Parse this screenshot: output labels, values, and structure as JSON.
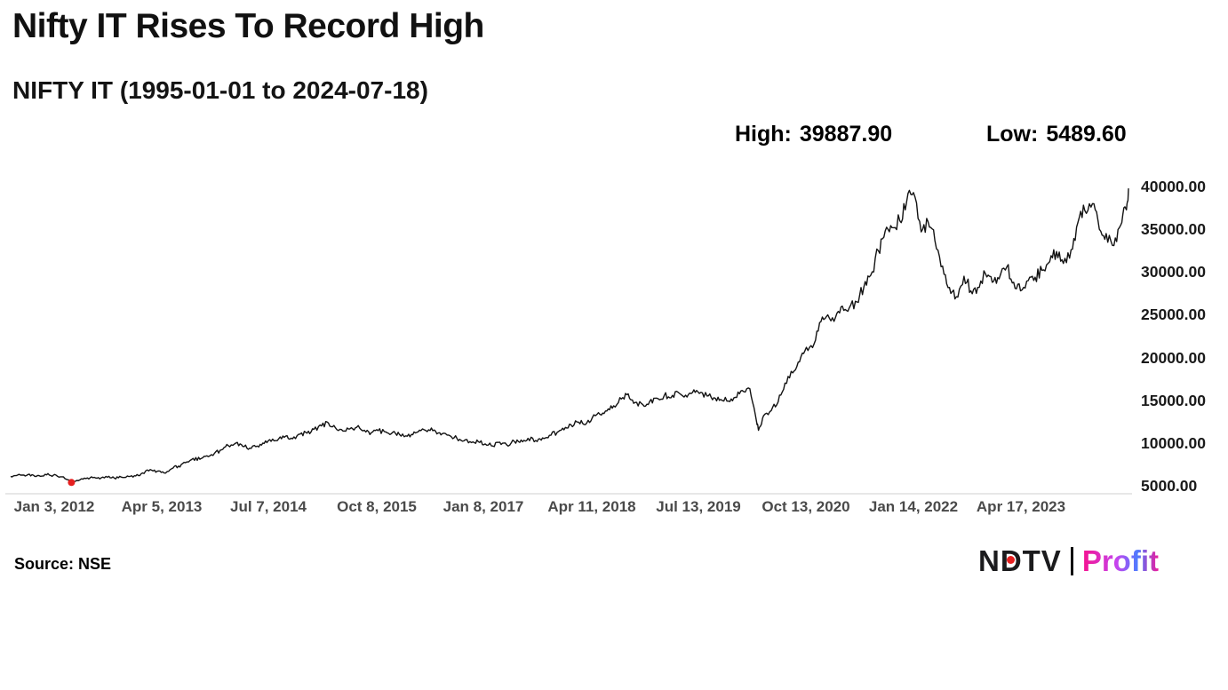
{
  "chart_data": {
    "type": "line",
    "title": "Nifty IT Rises To Record High",
    "subtitle": "NIFTY IT (1995-01-01 to 2024-07-18)",
    "annotations": {
      "high_label": "High:",
      "high_value": "39887.90",
      "low_label": "Low:",
      "low_value": "5489.60"
    },
    "x_axis": {
      "type": "time",
      "ticks": [
        {
          "t": 2012.01,
          "label": "Jan 3, 2012"
        },
        {
          "t": 2013.26,
          "label": "Apr 5, 2013"
        },
        {
          "t": 2014.51,
          "label": "Jul 7, 2014"
        },
        {
          "t": 2015.77,
          "label": "Oct 8, 2015"
        },
        {
          "t": 2017.02,
          "label": "Jan 8, 2017"
        },
        {
          "t": 2018.28,
          "label": "Apr 11, 2018"
        },
        {
          "t": 2019.53,
          "label": "Jul 13, 2019"
        },
        {
          "t": 2020.78,
          "label": "Oct 13, 2020"
        },
        {
          "t": 2022.04,
          "label": "Jan 14, 2022"
        },
        {
          "t": 2023.29,
          "label": "Apr 17, 2023"
        }
      ]
    },
    "y_axis": {
      "range": [
        5000,
        40000
      ],
      "ticks": [
        {
          "v": 5000,
          "label": "5000.00"
        },
        {
          "v": 10000,
          "label": "10000.00"
        },
        {
          "v": 15000,
          "label": "15000.00"
        },
        {
          "v": 20000,
          "label": "20000.00"
        },
        {
          "v": 25000,
          "label": "25000.00"
        },
        {
          "v": 30000,
          "label": "30000.00"
        },
        {
          "v": 35000,
          "label": "35000.00"
        },
        {
          "v": 40000,
          "label": "40000.00"
        }
      ]
    },
    "series": [
      {
        "name": "NIFTY IT",
        "color": "#121212",
        "points": [
          [
            2011.5,
            6200
          ],
          [
            2011.58,
            6350
          ],
          [
            2011.67,
            6250
          ],
          [
            2011.75,
            6400
          ],
          [
            2011.83,
            6300
          ],
          [
            2011.92,
            6380
          ],
          [
            2012.0,
            6350
          ],
          [
            2012.08,
            6150
          ],
          [
            2012.17,
            5800
          ],
          [
            2012.21,
            5489.6
          ],
          [
            2012.29,
            5700
          ],
          [
            2012.38,
            5950
          ],
          [
            2012.46,
            6050
          ],
          [
            2012.54,
            5900
          ],
          [
            2012.63,
            6100
          ],
          [
            2012.71,
            6000
          ],
          [
            2012.79,
            6120
          ],
          [
            2012.88,
            6180
          ],
          [
            2012.96,
            6250
          ],
          [
            2013.04,
            6600
          ],
          [
            2013.13,
            7000
          ],
          [
            2013.21,
            6800
          ],
          [
            2013.29,
            6600
          ],
          [
            2013.38,
            7100
          ],
          [
            2013.46,
            7400
          ],
          [
            2013.54,
            7800
          ],
          [
            2013.63,
            8300
          ],
          [
            2013.71,
            8200
          ],
          [
            2013.79,
            8600
          ],
          [
            2013.88,
            8900
          ],
          [
            2013.96,
            9300
          ],
          [
            2014.04,
            9800
          ],
          [
            2014.13,
            10100
          ],
          [
            2014.21,
            9700
          ],
          [
            2014.29,
            9500
          ],
          [
            2014.38,
            9750
          ],
          [
            2014.46,
            10050
          ],
          [
            2014.54,
            10300
          ],
          [
            2014.63,
            10600
          ],
          [
            2014.71,
            10900
          ],
          [
            2014.79,
            10600
          ],
          [
            2014.88,
            11150
          ],
          [
            2014.96,
            11250
          ],
          [
            2015.04,
            11700
          ],
          [
            2015.13,
            12100
          ],
          [
            2015.21,
            12450
          ],
          [
            2015.29,
            11900
          ],
          [
            2015.38,
            11500
          ],
          [
            2015.46,
            11750
          ],
          [
            2015.54,
            11950
          ],
          [
            2015.63,
            11600
          ],
          [
            2015.71,
            11300
          ],
          [
            2015.79,
            11550
          ],
          [
            2015.88,
            11400
          ],
          [
            2015.96,
            11350
          ],
          [
            2016.04,
            11100
          ],
          [
            2016.13,
            10900
          ],
          [
            2016.21,
            11400
          ],
          [
            2016.29,
            11550
          ],
          [
            2016.38,
            11650
          ],
          [
            2016.46,
            11500
          ],
          [
            2016.54,
            11200
          ],
          [
            2016.63,
            10950
          ],
          [
            2016.71,
            10650
          ],
          [
            2016.79,
            10350
          ],
          [
            2016.88,
            10150
          ],
          [
            2016.96,
            10250
          ],
          [
            2017.04,
            10000
          ],
          [
            2017.13,
            9750
          ],
          [
            2017.21,
            10200
          ],
          [
            2017.29,
            9900
          ],
          [
            2017.38,
            10300
          ],
          [
            2017.46,
            10450
          ],
          [
            2017.54,
            10650
          ],
          [
            2017.63,
            10400
          ],
          [
            2017.71,
            10700
          ],
          [
            2017.79,
            11000
          ],
          [
            2017.88,
            11350
          ],
          [
            2017.96,
            11650
          ],
          [
            2018.04,
            12250
          ],
          [
            2018.13,
            12550
          ],
          [
            2018.21,
            12250
          ],
          [
            2018.29,
            13050
          ],
          [
            2018.38,
            13450
          ],
          [
            2018.46,
            13850
          ],
          [
            2018.54,
            14450
          ],
          [
            2018.63,
            15250
          ],
          [
            2018.71,
            15850
          ],
          [
            2018.79,
            14850
          ],
          [
            2018.88,
            14600
          ],
          [
            2018.96,
            14950
          ],
          [
            2019.04,
            15350
          ],
          [
            2019.13,
            15650
          ],
          [
            2019.21,
            15400
          ],
          [
            2019.29,
            16050
          ],
          [
            2019.38,
            15700
          ],
          [
            2019.46,
            16000
          ],
          [
            2019.54,
            15900
          ],
          [
            2019.63,
            15600
          ],
          [
            2019.71,
            15400
          ],
          [
            2019.79,
            15200
          ],
          [
            2019.88,
            15000
          ],
          [
            2019.96,
            15450
          ],
          [
            2020.04,
            16250
          ],
          [
            2020.13,
            16450
          ],
          [
            2020.21,
            12500
          ],
          [
            2020.23,
            11600
          ],
          [
            2020.29,
            13300
          ],
          [
            2020.38,
            13900
          ],
          [
            2020.46,
            14900
          ],
          [
            2020.54,
            17100
          ],
          [
            2020.63,
            18300
          ],
          [
            2020.71,
            19600
          ],
          [
            2020.79,
            21300
          ],
          [
            2020.88,
            21700
          ],
          [
            2020.96,
            24300
          ],
          [
            2021.04,
            25100
          ],
          [
            2021.13,
            24800
          ],
          [
            2021.21,
            26100
          ],
          [
            2021.29,
            25900
          ],
          [
            2021.38,
            26600
          ],
          [
            2021.46,
            28300
          ],
          [
            2021.54,
            29700
          ],
          [
            2021.63,
            32600
          ],
          [
            2021.71,
            34900
          ],
          [
            2021.79,
            35300
          ],
          [
            2021.88,
            36100
          ],
          [
            2021.96,
            38300
          ],
          [
            2022.04,
            39400
          ],
          [
            2022.13,
            34800
          ],
          [
            2022.21,
            36000
          ],
          [
            2022.29,
            33800
          ],
          [
            2022.38,
            30800
          ],
          [
            2022.46,
            28300
          ],
          [
            2022.54,
            27200
          ],
          [
            2022.63,
            29600
          ],
          [
            2022.71,
            27900
          ],
          [
            2022.79,
            28300
          ],
          [
            2022.88,
            29900
          ],
          [
            2022.96,
            28900
          ],
          [
            2023.04,
            29300
          ],
          [
            2023.13,
            30700
          ],
          [
            2023.21,
            28900
          ],
          [
            2023.29,
            27900
          ],
          [
            2023.38,
            29100
          ],
          [
            2023.46,
            29500
          ],
          [
            2023.54,
            30300
          ],
          [
            2023.63,
            31300
          ],
          [
            2023.71,
            32500
          ],
          [
            2023.79,
            31100
          ],
          [
            2023.88,
            32700
          ],
          [
            2023.96,
            35900
          ],
          [
            2024.04,
            37300
          ],
          [
            2024.13,
            38100
          ],
          [
            2024.21,
            35100
          ],
          [
            2024.29,
            34600
          ],
          [
            2024.38,
            33200
          ],
          [
            2024.46,
            35600
          ],
          [
            2024.52,
            37500
          ],
          [
            2024.55,
            39887.9
          ]
        ]
      }
    ],
    "markers": [
      {
        "name": "low-point",
        "t": 2012.21,
        "v": 5489.6,
        "color": "#e62020"
      }
    ],
    "baseline_color": "#cfcfcf",
    "legend": "none",
    "grid": "off"
  },
  "footer": {
    "source": "Source: NSE",
    "logo": {
      "ndtv": "NDTV",
      "profit": "Profit"
    }
  }
}
